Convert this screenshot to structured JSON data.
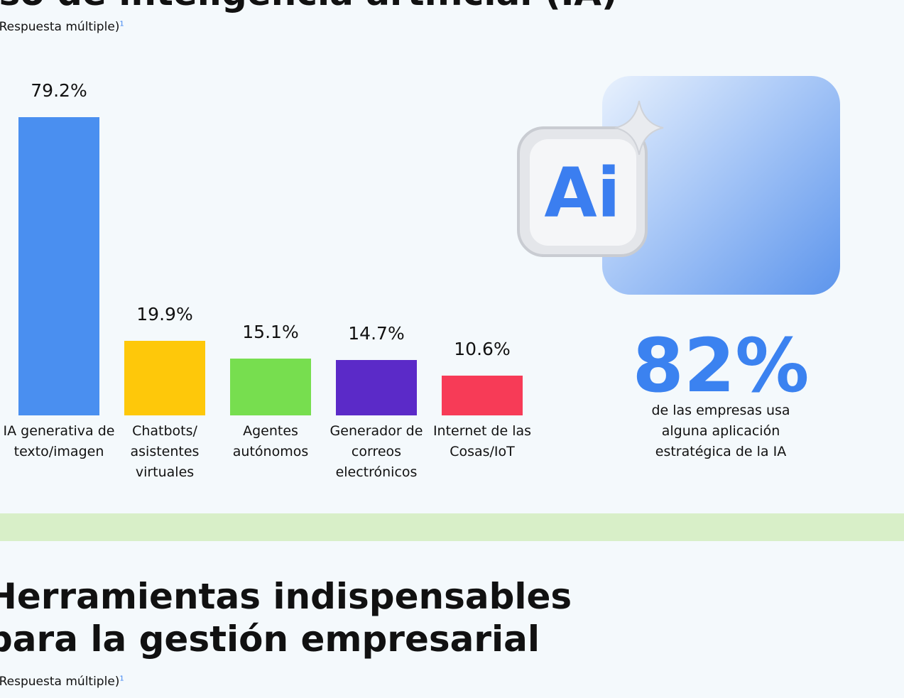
{
  "chart_data": {
    "type": "bar",
    "title": "Uso de inteligencia artificial (IA)",
    "subtitle": "(Respuesta múltiple)",
    "footnote": "1",
    "categories": [
      "IA generativa de texto/imagen",
      "Chatbots/ asistentes virtuales",
      "Agentes autónomos",
      "Generador de correos electrónicos",
      "Internet de las Cosas/IoT"
    ],
    "values": [
      79.2,
      19.9,
      15.1,
      14.7,
      10.6
    ],
    "value_labels": [
      "79.2%",
      "19.9%",
      "15.1%",
      "14.7%",
      "10.6%"
    ],
    "colors": [
      "#4a8ff0",
      "#fec80a",
      "#77de4f",
      "#5b2ac8",
      "#f73b57"
    ]
  },
  "stat": {
    "value": "82%",
    "text": "de las empresas usa alguna aplicación estratégica de la IA"
  },
  "section2": {
    "title": "Herramientas indispensables para la gestión empresarial",
    "subtitle": "(Respuesta múltiple)",
    "footnote": "1"
  }
}
